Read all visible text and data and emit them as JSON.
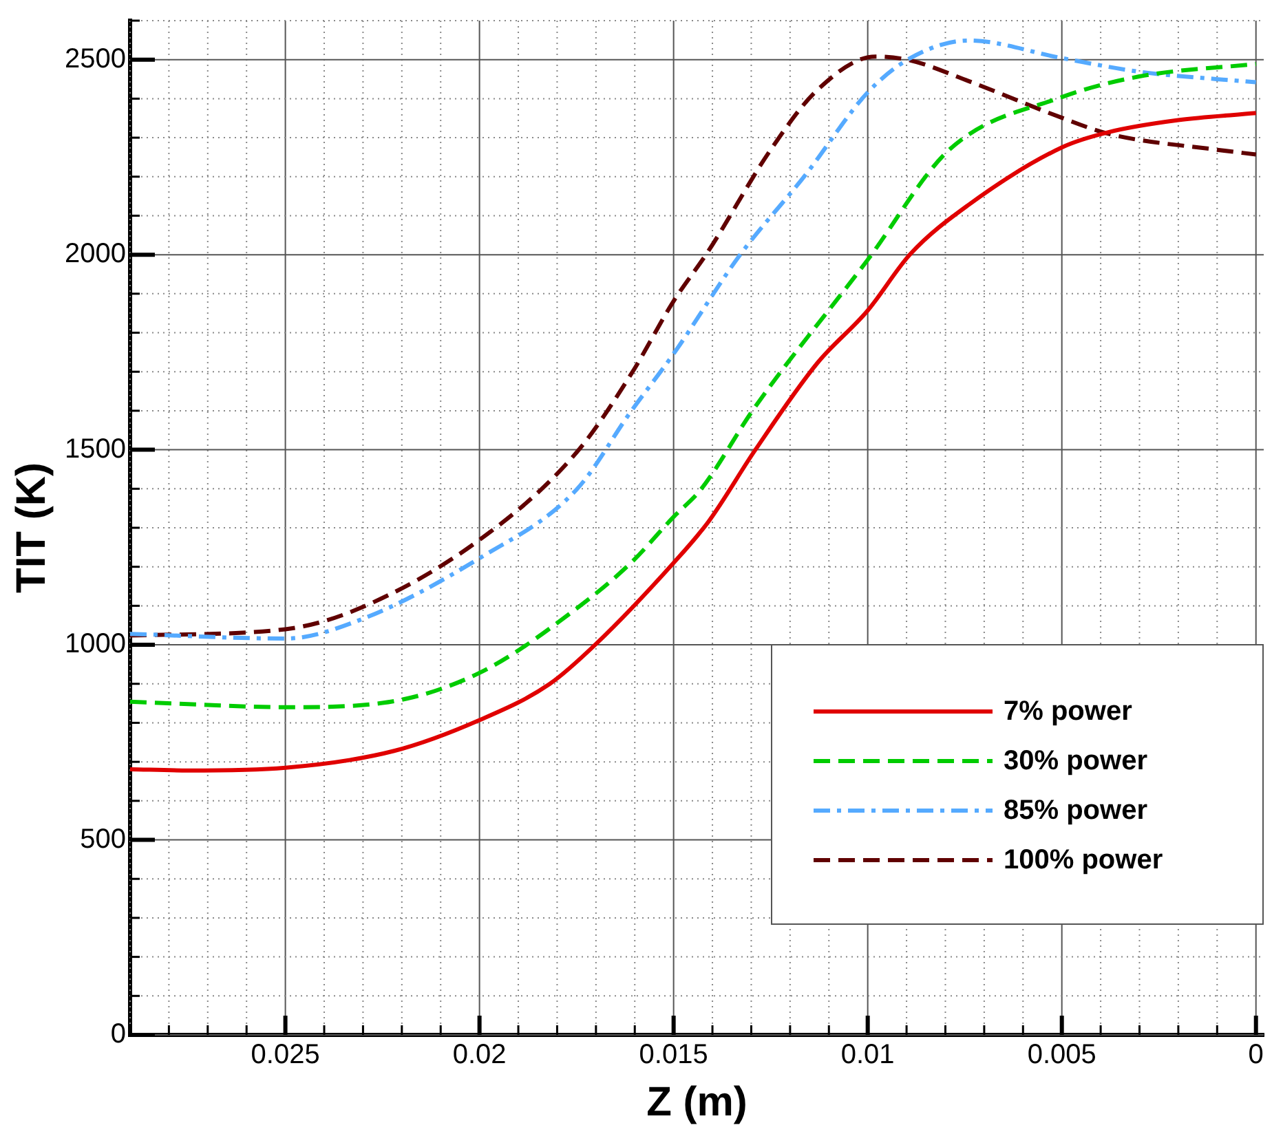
{
  "chart_data": {
    "type": "line",
    "xlabel": "Z (m)",
    "ylabel": "TIT (K)",
    "xlim": [
      0.029,
      -0.0002
    ],
    "ylim": [
      0,
      2600
    ],
    "xticks": [
      {
        "value": 0.029,
        "label": null
      },
      {
        "value": 0.028,
        "label": null
      },
      {
        "value": 0.027,
        "label": null
      },
      {
        "value": 0.026,
        "label": null
      },
      0.025,
      {
        "value": 0.024,
        "label": null
      },
      {
        "value": 0.023,
        "label": null
      },
      {
        "value": 0.022,
        "label": null
      },
      {
        "value": 0.021,
        "label": null
      },
      0.02,
      {
        "value": 0.019,
        "label": null
      },
      {
        "value": 0.018,
        "label": null
      },
      {
        "value": 0.017,
        "label": null
      },
      {
        "value": 0.016,
        "label": null
      },
      0.015,
      {
        "value": 0.014,
        "label": null
      },
      {
        "value": 0.013,
        "label": null
      },
      {
        "value": 0.012,
        "label": null
      },
      {
        "value": 0.011,
        "label": null
      },
      0.01,
      {
        "value": 0.009,
        "label": null
      },
      {
        "value": 0.008,
        "label": null
      },
      {
        "value": 0.007,
        "label": null
      },
      {
        "value": 0.006,
        "label": null
      },
      0.005,
      {
        "value": 0.004,
        "label": null
      },
      {
        "value": 0.003,
        "label": null
      },
      {
        "value": 0.002,
        "label": null
      },
      {
        "value": 0.001,
        "label": null
      },
      0
    ],
    "yticks": [
      0,
      {
        "value": 100,
        "label": null
      },
      {
        "value": 200,
        "label": null
      },
      {
        "value": 300,
        "label": null
      },
      {
        "value": 400,
        "label": null
      },
      500,
      {
        "value": 600,
        "label": null
      },
      {
        "value": 700,
        "label": null
      },
      {
        "value": 800,
        "label": null
      },
      {
        "value": 900,
        "label": null
      },
      1000,
      {
        "value": 1100,
        "label": null
      },
      {
        "value": 1200,
        "label": null
      },
      {
        "value": 1300,
        "label": null
      },
      {
        "value": 1400,
        "label": null
      },
      1500,
      {
        "value": 1600,
        "label": null
      },
      {
        "value": 1700,
        "label": null
      },
      {
        "value": 1800,
        "label": null
      },
      {
        "value": 1900,
        "label": null
      },
      2000,
      {
        "value": 2100,
        "label": null
      },
      {
        "value": 2200,
        "label": null
      },
      {
        "value": 2300,
        "label": null
      },
      {
        "value": 2400,
        "label": null
      },
      2500,
      {
        "value": 2600,
        "label": null
      }
    ],
    "grid": true,
    "legend": "bottom right",
    "marker": "none",
    "series": [
      {
        "name": "7% power",
        "color": "#e00000",
        "line_style": "solid",
        "x": [
          0.029,
          0.0275,
          0.025,
          0.0222,
          0.02,
          0.0182,
          0.017,
          0.015,
          0.0141,
          0.0129,
          0.0113,
          0.01,
          0.0089,
          0.0074,
          0.005,
          0.0038,
          0.002,
          0
        ],
        "values": [
          681,
          678,
          685,
          728,
          807,
          899,
          1002,
          1210,
          1316,
          1499,
          1722,
          1857,
          2002,
          2128,
          2275,
          2314,
          2345,
          2363
        ]
      },
      {
        "name": "30% power",
        "color": "#00cc00",
        "line_style": "dashed",
        "x": [
          0.029,
          0.0275,
          0.025,
          0.0225,
          0.02,
          0.0175,
          0.0161,
          0.015,
          0.0143,
          0.0129,
          0.01,
          0.0079,
          0.005,
          0.003,
          0
        ],
        "values": [
          854,
          848,
          840,
          851,
          928,
          1093,
          1210,
          1328,
          1398,
          1610,
          1987,
          2269,
          2404,
          2457,
          2489
        ]
      },
      {
        "name": "85% power",
        "color": "#55aaff",
        "line_style": "dashdot",
        "x": [
          0.029,
          0.025,
          0.0231,
          0.02,
          0.0175,
          0.0161,
          0.015,
          0.0133,
          0.0116,
          0.01,
          0.0089,
          0.0074,
          0.005,
          0.003,
          0
        ],
        "values": [
          1028,
          1016,
          1063,
          1222,
          1398,
          1598,
          1746,
          1998,
          2205,
          2416,
          2504,
          2549,
          2504,
          2469,
          2442
        ]
      },
      {
        "name": "100% power",
        "color": "#600000",
        "line_style": "dashed",
        "x": [
          0.029,
          0.025,
          0.0231,
          0.02,
          0.0175,
          0.0161,
          0.015,
          0.0141,
          0.0125,
          0.0113,
          0.0098,
          0.0089,
          0.0074,
          0.005,
          0.0038,
          0.001,
          0
        ],
        "values": [
          1024,
          1040,
          1093,
          1269,
          1493,
          1693,
          1881,
          2010,
          2269,
          2422,
          2508,
          2498,
          2445,
          2351,
          2310,
          2269,
          2257
        ]
      }
    ]
  }
}
